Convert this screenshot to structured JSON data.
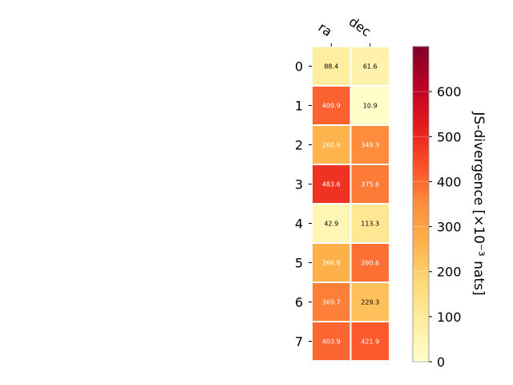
{
  "chart_data": {
    "type": "heatmap",
    "columns": [
      "ra",
      "dec"
    ],
    "rows": [
      "0",
      "1",
      "2",
      "3",
      "4",
      "5",
      "6",
      "7"
    ],
    "values": [
      [
        88.4,
        61.6
      ],
      [
        409.9,
        10.9
      ],
      [
        260.9,
        349.3
      ],
      [
        483.6,
        375.6
      ],
      [
        42.9,
        113.3
      ],
      [
        266.8,
        390.6
      ],
      [
        369.7,
        229.3
      ],
      [
        403.9,
        421.9
      ]
    ],
    "cell_labels": [
      [
        "88.4",
        "61.6"
      ],
      [
        "409.9",
        "10.9"
      ],
      [
        "260.9",
        "349.3"
      ],
      [
        "483.6",
        "375.6"
      ],
      [
        "42.9",
        "113.3"
      ],
      [
        "266.8",
        "390.6"
      ],
      [
        "369.7",
        "229.3"
      ],
      [
        "403.9",
        "421.9"
      ]
    ],
    "colorbar": {
      "label": "JS-divergence [×10⁻³ nats]",
      "range": [
        0,
        700
      ],
      "ticks": [
        0,
        100,
        200,
        300,
        400,
        500,
        600
      ],
      "tick_labels": [
        "0",
        "100",
        "200",
        "300",
        "400",
        "500",
        "600"
      ],
      "colormap": "YlOrRd",
      "gradient": [
        "#ffffcc",
        "#ffeda0",
        "#fed976",
        "#feb24c",
        "#fd8d3c",
        "#fc4e2a",
        "#e31a1c",
        "#bd0026",
        "#800026"
      ]
    }
  }
}
